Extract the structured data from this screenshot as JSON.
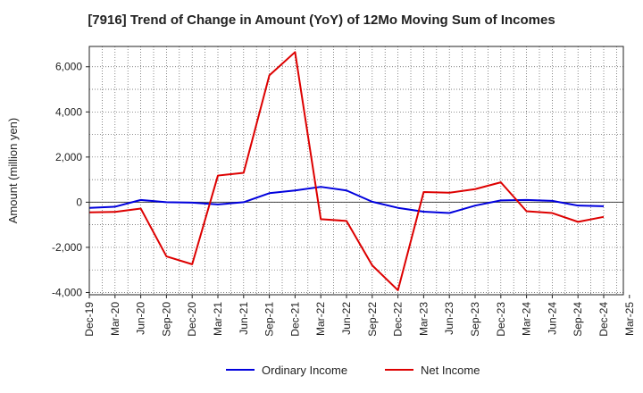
{
  "chart_data": {
    "type": "line",
    "title": "[7916]  Trend of Change in Amount (YoY) of 12Mo Moving Sum of Incomes",
    "xlabel": "",
    "ylabel": "Amount (million yen)",
    "categories": [
      "Dec-19",
      "Mar-20",
      "Jun-20",
      "Sep-20",
      "Dec-20",
      "Mar-21",
      "Jun-21",
      "Sep-21",
      "Dec-21",
      "Mar-22",
      "Jun-22",
      "Sep-22",
      "Dec-22",
      "Mar-23",
      "Jun-23",
      "Sep-23",
      "Dec-23",
      "Mar-24",
      "Jun-24",
      "Sep-24",
      "Dec-24",
      "Mar-25"
    ],
    "ylim": [
      -4100,
      6900
    ],
    "yticks": [
      -4000,
      -2000,
      0,
      2000,
      4000,
      6000
    ],
    "ytick_labels": [
      "-4,000",
      "-2,000",
      "0",
      "2,000",
      "4,000",
      "6,000"
    ],
    "grid": true,
    "legend_position": "bottom",
    "series": [
      {
        "name": "Ordinary Income",
        "color": "#0000dd",
        "values": [
          -250,
          -200,
          100,
          0,
          -20,
          -100,
          0,
          400,
          520,
          680,
          520,
          20,
          -250,
          -420,
          -480,
          -150,
          80,
          100,
          60,
          -150,
          -180,
          null
        ]
      },
      {
        "name": "Net Income",
        "color": "#dd0000",
        "values": [
          -450,
          -430,
          -280,
          -2400,
          -2750,
          1180,
          1300,
          5620,
          6650,
          -750,
          -830,
          -2800,
          -3900,
          450,
          420,
          580,
          880,
          -400,
          -480,
          -870,
          -650,
          null
        ]
      }
    ]
  }
}
